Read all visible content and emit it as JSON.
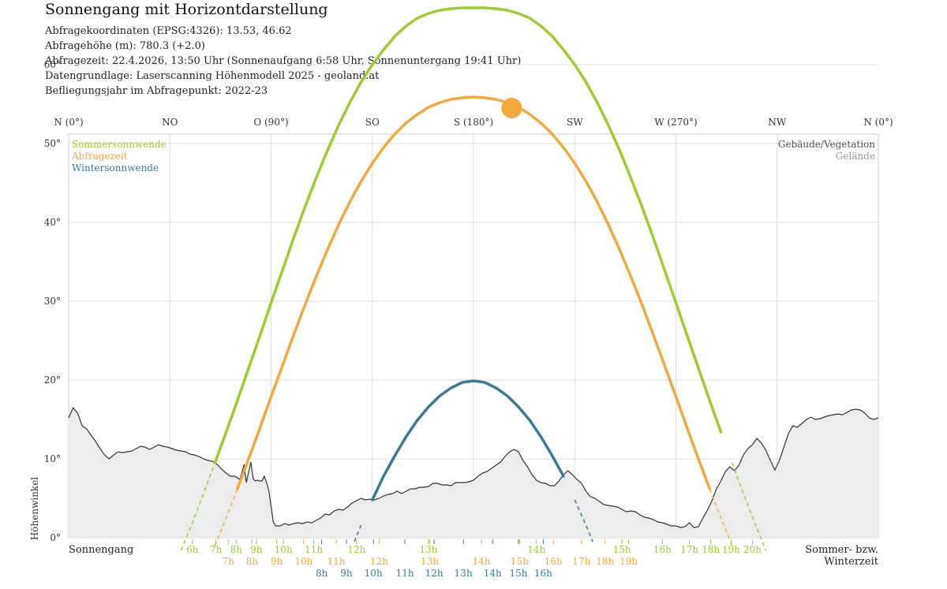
{
  "header": {
    "title": "Sonnengang mit Horizontdarstellung",
    "lines": [
      "Abfragekoordinaten (EPSG:4326): 13.53, 46.62",
      "Abfragehöhe (m): 780.3 (+2.0)",
      "Abfragezeit: 22.4.2026, 13:50 Uhr (Sonnenaufgang 6:58 Uhr,  Sonnenuntergang 19:41 Uhr)",
      "Datengrundlage: Laserscanning Höhenmodell 2025 - geoland.at",
      "Befliegungsjahr im Abfragepunkt: 2022-23"
    ]
  },
  "colors": {
    "summer": "#9ccc2e",
    "query": "#f2a93b",
    "winter": "#3a7a94",
    "terrain_line": "#333333",
    "terrain_fill": "#ececec",
    "grid": "#dddddd",
    "sun": "#f2a93b"
  },
  "chart_data": {
    "type": "line",
    "title": "Sonnengang mit Horizontdarstellung",
    "ylabel": "Höhenwinkel",
    "xlabel_left": "Sonnengang",
    "xlabel_right": [
      "Sommer- bzw.",
      "Winterzeit"
    ],
    "xlim": [
      0,
      360
    ],
    "ylim": [
      0,
      67
    ],
    "y_ticks": [
      {
        "v": 0,
        "label": "0°"
      },
      {
        "v": 10,
        "label": "10°"
      },
      {
        "v": 20,
        "label": "20°"
      },
      {
        "v": 30,
        "label": "30°"
      },
      {
        "v": 40,
        "label": "40°"
      },
      {
        "v": 50,
        "label": "50°"
      },
      {
        "v": 60,
        "label": "60°"
      }
    ],
    "x_ticks": [
      {
        "v": 0,
        "label": "N (0°)"
      },
      {
        "v": 45,
        "label": "NO"
      },
      {
        "v": 90,
        "label": "O (90°)"
      },
      {
        "v": 135,
        "label": "SO"
      },
      {
        "v": 180,
        "label": "S (180°)"
      },
      {
        "v": 225,
        "label": "SW"
      },
      {
        "v": 270,
        "label": "W (270°)"
      },
      {
        "v": 315,
        "label": "NW"
      },
      {
        "v": 360,
        "label": "N (0°)"
      }
    ],
    "grid": true,
    "legend_left": [
      {
        "name": "Sommersonnwende",
        "color": "#9ccc2e"
      },
      {
        "name": "Abfragezeit",
        "color": "#f2a93b"
      },
      {
        "name": "Wintersonnwende",
        "color": "#3a7a94"
      }
    ],
    "legend_right": [
      {
        "name": "Gebäude/Vegetation",
        "color": "#555555"
      },
      {
        "name": "Gelände",
        "color": "#999999"
      }
    ],
    "sun_position": {
      "az": 197,
      "el": 54.5
    },
    "horizon": [
      [
        0,
        15.2
      ],
      [
        2,
        16.5
      ],
      [
        4,
        15.8
      ],
      [
        6,
        14.2
      ],
      [
        8,
        13.8
      ],
      [
        10,
        13.0
      ],
      [
        12,
        12.2
      ],
      [
        14,
        11.3
      ],
      [
        16,
        10.5
      ],
      [
        18,
        10.0
      ],
      [
        20,
        10.5
      ],
      [
        22,
        10.9
      ],
      [
        24,
        10.8
      ],
      [
        26,
        10.9
      ],
      [
        28,
        11.0
      ],
      [
        30,
        11.3
      ],
      [
        32,
        11.6
      ],
      [
        34,
        11.5
      ],
      [
        36,
        11.2
      ],
      [
        38,
        11.5
      ],
      [
        40,
        11.8
      ],
      [
        42,
        11.6
      ],
      [
        44,
        11.5
      ],
      [
        46,
        11.3
      ],
      [
        48,
        11.1
      ],
      [
        50,
        11.0
      ],
      [
        52,
        10.9
      ],
      [
        54,
        10.6
      ],
      [
        56,
        10.5
      ],
      [
        58,
        10.3
      ],
      [
        60,
        10.0
      ],
      [
        62,
        9.8
      ],
      [
        64,
        9.7
      ],
      [
        66,
        9.3
      ],
      [
        68,
        8.7
      ],
      [
        70,
        8.2
      ],
      [
        72,
        7.8
      ],
      [
        74,
        7.8
      ],
      [
        76,
        7.4
      ],
      [
        77,
        8.2
      ],
      [
        78,
        9.3
      ],
      [
        79,
        7.0
      ],
      [
        80,
        8.3
      ],
      [
        81,
        9.6
      ],
      [
        82,
        7.5
      ],
      [
        83,
        7.2
      ],
      [
        84,
        7.3
      ],
      [
        85,
        7.2
      ],
      [
        86,
        7.2
      ],
      [
        87,
        7.8
      ],
      [
        88,
        7.0
      ],
      [
        89,
        6.0
      ],
      [
        90,
        4.0
      ],
      [
        91,
        2.0
      ],
      [
        92,
        1.5
      ],
      [
        94,
        1.5
      ],
      [
        96,
        1.8
      ],
      [
        98,
        1.6
      ],
      [
        100,
        1.8
      ],
      [
        102,
        1.9
      ],
      [
        104,
        1.8
      ],
      [
        106,
        2.0
      ],
      [
        108,
        1.9
      ],
      [
        110,
        2.2
      ],
      [
        112,
        2.5
      ],
      [
        114,
        3.0
      ],
      [
        116,
        2.9
      ],
      [
        118,
        3.4
      ],
      [
        120,
        3.6
      ],
      [
        122,
        3.5
      ],
      [
        124,
        3.9
      ],
      [
        126,
        4.4
      ],
      [
        128,
        4.7
      ],
      [
        130,
        5.0
      ],
      [
        132,
        4.8
      ],
      [
        134,
        4.9
      ],
      [
        136,
        4.8
      ],
      [
        138,
        5.0
      ],
      [
        140,
        5.3
      ],
      [
        142,
        5.5
      ],
      [
        144,
        5.6
      ],
      [
        146,
        5.9
      ],
      [
        148,
        5.6
      ],
      [
        150,
        5.9
      ],
      [
        152,
        6.2
      ],
      [
        154,
        6.2
      ],
      [
        156,
        6.4
      ],
      [
        158,
        6.4
      ],
      [
        160,
        6.5
      ],
      [
        162,
        6.9
      ],
      [
        164,
        6.9
      ],
      [
        166,
        6.7
      ],
      [
        168,
        6.7
      ],
      [
        170,
        6.6
      ],
      [
        172,
        7.0
      ],
      [
        174,
        7.0
      ],
      [
        176,
        7.0
      ],
      [
        178,
        7.1
      ],
      [
        180,
        7.3
      ],
      [
        182,
        7.8
      ],
      [
        184,
        8.2
      ],
      [
        186,
        8.4
      ],
      [
        188,
        8.8
      ],
      [
        190,
        9.2
      ],
      [
        192,
        9.6
      ],
      [
        194,
        10.3
      ],
      [
        196,
        10.9
      ],
      [
        198,
        11.2
      ],
      [
        200,
        10.9
      ],
      [
        202,
        9.8
      ],
      [
        204,
        9.0
      ],
      [
        206,
        8.0
      ],
      [
        208,
        7.3
      ],
      [
        210,
        7.0
      ],
      [
        212,
        6.9
      ],
      [
        214,
        6.6
      ],
      [
        216,
        6.6
      ],
      [
        218,
        7.2
      ],
      [
        220,
        8.0
      ],
      [
        222,
        8.5
      ],
      [
        224,
        8.0
      ],
      [
        226,
        7.4
      ],
      [
        228,
        6.9
      ],
      [
        230,
        5.9
      ],
      [
        232,
        5.2
      ],
      [
        234,
        5.0
      ],
      [
        236,
        4.6
      ],
      [
        238,
        4.2
      ],
      [
        240,
        4.1
      ],
      [
        242,
        4.0
      ],
      [
        244,
        3.9
      ],
      [
        246,
        3.6
      ],
      [
        248,
        3.3
      ],
      [
        250,
        3.4
      ],
      [
        252,
        3.3
      ],
      [
        254,
        2.9
      ],
      [
        256,
        2.6
      ],
      [
        258,
        2.5
      ],
      [
        260,
        2.3
      ],
      [
        262,
        2.0
      ],
      [
        264,
        1.9
      ],
      [
        266,
        1.7
      ],
      [
        268,
        1.5
      ],
      [
        270,
        1.5
      ],
      [
        272,
        1.3
      ],
      [
        274,
        1.4
      ],
      [
        276,
        1.9
      ],
      [
        278,
        1.3
      ],
      [
        280,
        1.4
      ],
      [
        282,
        2.5
      ],
      [
        284,
        3.5
      ],
      [
        286,
        4.7
      ],
      [
        288,
        6.2
      ],
      [
        290,
        7.2
      ],
      [
        292,
        8.4
      ],
      [
        294,
        9.0
      ],
      [
        296,
        8.5
      ],
      [
        298,
        9.2
      ],
      [
        300,
        10.5
      ],
      [
        302,
        11.3
      ],
      [
        304,
        11.8
      ],
      [
        306,
        12.6
      ],
      [
        308,
        12.0
      ],
      [
        310,
        11.1
      ],
      [
        312,
        9.8
      ],
      [
        314,
        8.6
      ],
      [
        316,
        9.8
      ],
      [
        318,
        11.5
      ],
      [
        320,
        13.2
      ],
      [
        322,
        14.2
      ],
      [
        324,
        14.0
      ],
      [
        326,
        14.5
      ],
      [
        328,
        15.0
      ],
      [
        330,
        15.3
      ],
      [
        332,
        15.0
      ],
      [
        334,
        15.1
      ],
      [
        336,
        15.3
      ],
      [
        338,
        15.5
      ],
      [
        340,
        15.6
      ],
      [
        342,
        15.7
      ],
      [
        344,
        15.6
      ],
      [
        346,
        15.9
      ],
      [
        348,
        16.2
      ],
      [
        350,
        16.3
      ],
      [
        352,
        16.2
      ],
      [
        354,
        15.8
      ],
      [
        356,
        15.2
      ],
      [
        358,
        15.0
      ],
      [
        360,
        15.2
      ]
    ],
    "series": [
      {
        "name": "Sommersonnwende",
        "color": "#9ccc2e",
        "x": [
          50,
          55,
          60,
          65,
          70,
          75,
          80,
          85,
          90,
          95,
          100,
          105,
          110,
          115,
          120,
          125,
          130,
          135,
          140,
          145,
          150,
          155,
          160,
          165,
          170,
          175,
          180,
          185,
          190,
          195,
          200,
          205,
          210,
          215,
          220,
          225,
          230,
          235,
          240,
          245,
          250,
          255,
          260,
          265,
          270,
          275,
          280,
          285,
          290,
          295,
          300,
          305,
          310
        ],
        "y": [
          -1.6,
          1.9,
          5.6,
          9.5,
          13.4,
          17.4,
          21.5,
          25.6,
          29.8,
          33.9,
          38.0,
          41.9,
          45.6,
          49.1,
          52.3,
          55.2,
          57.8,
          60.0,
          61.9,
          63.6,
          64.9,
          65.9,
          66.5,
          66.9,
          67.1,
          67.2,
          67.2,
          67.2,
          67.1,
          66.9,
          66.5,
          65.9,
          64.9,
          63.6,
          61.9,
          60.0,
          57.8,
          55.2,
          52.3,
          49.1,
          45.6,
          41.9,
          38.0,
          33.9,
          29.8,
          25.6,
          21.5,
          17.4,
          13.4,
          9.5,
          5.6,
          1.9,
          -1.6
        ],
        "visible_from": 65,
        "visible_to": 294
      },
      {
        "name": "Abfragezeit",
        "color": "#f2a93b",
        "x": [
          65,
          70,
          75,
          80,
          85,
          90,
          95,
          100,
          105,
          110,
          115,
          120,
          125,
          130,
          135,
          140,
          145,
          150,
          155,
          160,
          165,
          170,
          175,
          180,
          185,
          190,
          195,
          200,
          205,
          210,
          215,
          220,
          225,
          230,
          235,
          240,
          245,
          250,
          255,
          260,
          265,
          270,
          275,
          280,
          285,
          290,
          295
        ],
        "y": [
          -1.0,
          2.5,
          6.2,
          10.0,
          13.9,
          17.9,
          21.8,
          25.7,
          29.5,
          33.1,
          36.5,
          39.7,
          42.6,
          45.2,
          47.5,
          49.5,
          51.2,
          52.6,
          53.7,
          54.6,
          55.2,
          55.6,
          55.8,
          55.9,
          55.8,
          55.6,
          55.2,
          54.6,
          53.7,
          52.6,
          51.2,
          49.5,
          47.5,
          45.2,
          42.6,
          39.7,
          36.5,
          33.1,
          29.5,
          25.7,
          21.8,
          17.9,
          13.9,
          10.0,
          6.2,
          2.5,
          -1.0
        ],
        "visible_from": 75,
        "visible_to": 285
      },
      {
        "name": "Wintersonnwende",
        "color": "#3a7a94",
        "x": [
          127,
          130,
          135,
          140,
          145,
          150,
          155,
          160,
          165,
          170,
          175,
          180,
          185,
          190,
          195,
          200,
          205,
          210,
          215,
          220,
          225,
          230,
          233
        ],
        "y": [
          -0.5,
          1.6,
          4.8,
          7.8,
          10.4,
          12.8,
          14.9,
          16.6,
          18.0,
          19.0,
          19.7,
          19.9,
          19.7,
          19.0,
          18.0,
          16.6,
          14.9,
          12.8,
          10.4,
          7.8,
          4.8,
          1.6,
          -0.5
        ],
        "visible_from": 131,
        "visible_to": 222
      }
    ],
    "hour_rows": [
      {
        "color": "#9ccc2e",
        "labels": [
          {
            "az": 55,
            "label": "6h"
          },
          {
            "az": 65.5,
            "label": "7h"
          },
          {
            "az": 74.5,
            "label": "8h"
          },
          {
            "az": 83.5,
            "label": "9h"
          },
          {
            "az": 95.5,
            "label": "10h"
          },
          {
            "az": 109,
            "label": "11h"
          },
          {
            "az": 128,
            "label": "12h"
          },
          {
            "az": 160,
            "label": "13h"
          },
          {
            "az": 208,
            "label": "14h"
          },
          {
            "az": 246,
            "label": "15h"
          },
          {
            "az": 264,
            "label": "16h"
          },
          {
            "az": 276,
            "label": "17h"
          },
          {
            "az": 285.5,
            "label": "18h"
          },
          {
            "az": 294.5,
            "label": "19h"
          },
          {
            "az": 304,
            "label": "20h"
          }
        ]
      },
      {
        "color": "#f2a93b",
        "labels": [
          {
            "az": 71,
            "label": "7h"
          },
          {
            "az": 81.5,
            "label": "8h"
          },
          {
            "az": 92.5,
            "label": "9h"
          },
          {
            "az": 104.5,
            "label": "10h"
          },
          {
            "az": 119,
            "label": "11h"
          },
          {
            "az": 138,
            "label": "12h"
          },
          {
            "az": 160.5,
            "label": "13h"
          },
          {
            "az": 183.5,
            "label": "14h"
          },
          {
            "az": 200.5,
            "label": "15h"
          },
          {
            "az": 215.5,
            "label": "16h"
          },
          {
            "az": 228,
            "label": "17h"
          },
          {
            "az": 238.5,
            "label": "18h"
          },
          {
            "az": 249,
            "label": "19h"
          }
        ]
      },
      {
        "color": "#3a7a94",
        "labels": [
          {
            "az": 112.5,
            "label": "8h"
          },
          {
            "az": 123.5,
            "label": "9h"
          },
          {
            "az": 135.5,
            "label": "10h"
          },
          {
            "az": 149.5,
            "label": "11h"
          },
          {
            "az": 162.5,
            "label": "12h"
          },
          {
            "az": 175.5,
            "label": "13h"
          },
          {
            "az": 188.5,
            "label": "14h"
          },
          {
            "az": 200,
            "label": "15h"
          },
          {
            "az": 211,
            "label": "16h"
          }
        ]
      }
    ]
  }
}
